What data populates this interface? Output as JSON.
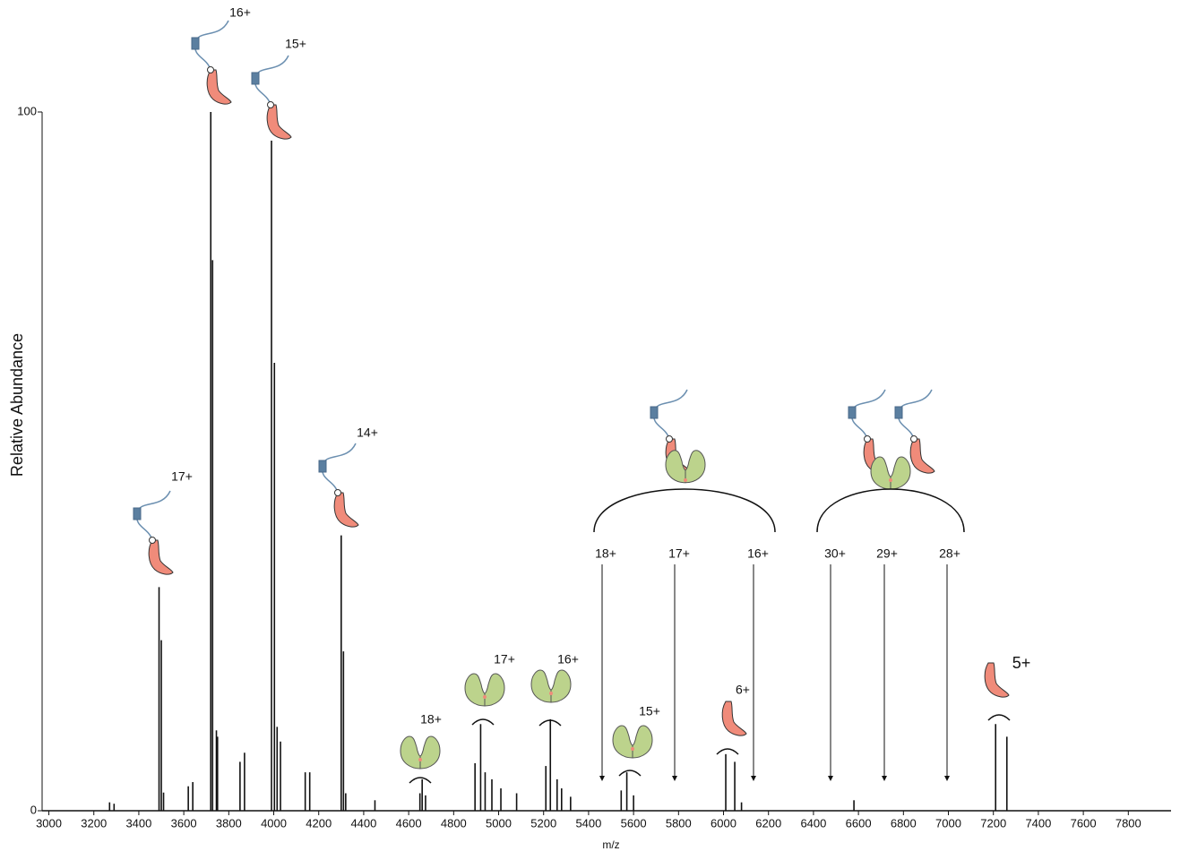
{
  "chart_data": {
    "type": "stem",
    "x_label": "m/z",
    "y_label": "Relative Abundance",
    "xlim": [
      2970,
      7990
    ],
    "ylim": [
      0,
      100
    ],
    "xticks": [
      3000,
      3200,
      3400,
      3600,
      3800,
      4000,
      4200,
      4400,
      4600,
      4800,
      5000,
      5200,
      5400,
      5600,
      5800,
      6000,
      6200,
      6400,
      6600,
      6800,
      7000,
      7200,
      7400,
      7600,
      7800
    ],
    "yticks": [
      0,
      100
    ],
    "color": "#111111",
    "x": [
      3270,
      3290,
      3490,
      3500,
      3510,
      3620,
      3640,
      3720,
      3728,
      3745,
      3750,
      3850,
      3870,
      3990,
      4003,
      4015,
      4030,
      4140,
      4160,
      4300,
      4310,
      4320,
      4450,
      4650,
      4660,
      4675,
      4895,
      4920,
      4940,
      4970,
      5010,
      5080,
      5210,
      5230,
      5260,
      5280,
      5320,
      5545,
      5570,
      5600,
      6010,
      6050,
      6080,
      6580,
      7210,
      7260
    ],
    "values": [
      1.2,
      1.0,
      32,
      24.4,
      2.6,
      3.5,
      4.1,
      100,
      78.8,
      11.5,
      10.6,
      7,
      8.3,
      95.9,
      64.1,
      12,
      9.9,
      5.5,
      5.5,
      39.4,
      22.8,
      2.5,
      1.5,
      2.5,
      4.5,
      2.2,
      6.8,
      12.4,
      5.5,
      4.5,
      3.2,
      2.5,
      6.4,
      13.1,
      4.5,
      3.2,
      2,
      2.9,
      5.5,
      2.2,
      8.1,
      7,
      1.2,
      1.5,
      12.4,
      10.6
    ],
    "annotations": [
      "17+",
      "16+",
      "15+",
      "14+",
      "18+",
      "17+",
      "16+",
      "15+",
      "6+",
      "5+",
      "18+",
      "17+",
      "16+",
      "30+",
      "29+",
      "28+"
    ]
  }
}
